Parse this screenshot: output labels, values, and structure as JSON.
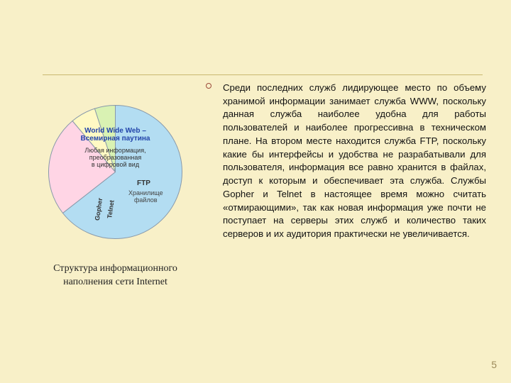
{
  "divider_color": "#c9b870",
  "background_color": "#f8f0c8",
  "page_number": "5",
  "bullet_color": "#9c4a3a",
  "chart": {
    "type": "pie",
    "slices": [
      {
        "name": "www",
        "color": "#b3ddf2",
        "start_angle": -90,
        "end_angle": 142
      },
      {
        "name": "ftp",
        "color": "#ffd5e5",
        "start_angle": 142,
        "end_angle": 230
      },
      {
        "name": "telnet",
        "color": "#fff9c4",
        "start_angle": 230,
        "end_angle": 252
      },
      {
        "name": "gopher",
        "color": "#d9f2b3",
        "start_angle": 252,
        "end_angle": 270
      }
    ],
    "border_color": "#8899aa",
    "labels": {
      "www_title": "World Wide Web –\nВсемирная паутина",
      "www_title_color": "#2244aa",
      "www_sub": "Любая информация,\nпреобразованная\nв цифровой вид",
      "www_sub_color": "#333333",
      "ftp_title": "FTP",
      "ftp_sub": "Хранилище\nфайлов",
      "gopher": "Gopher",
      "telnet": "Telnet"
    }
  },
  "caption": "Структура\nинформационного\nнаполнения сети Internet",
  "body_text": "Среди последних служб лидирующее место по объему хранимой информации занимает служба WWW, поскольку данная служба наиболее удобна для работы пользователей и наиболее прогрессивна в техническом плане. На втором месте находится служба FTP, поскольку какие бы интерфейсы и удобства не разрабатывали для пользователя, информация все равно хранится в файлах, доступ к которым и обеспечивает эта служба. Службы Gopher и Telnet в настоящее время можно считать «отмирающими», так как новая информация уже почти не поступает на серверы этих служб и количество таких серверов и их аудитория практически не увеличивается."
}
